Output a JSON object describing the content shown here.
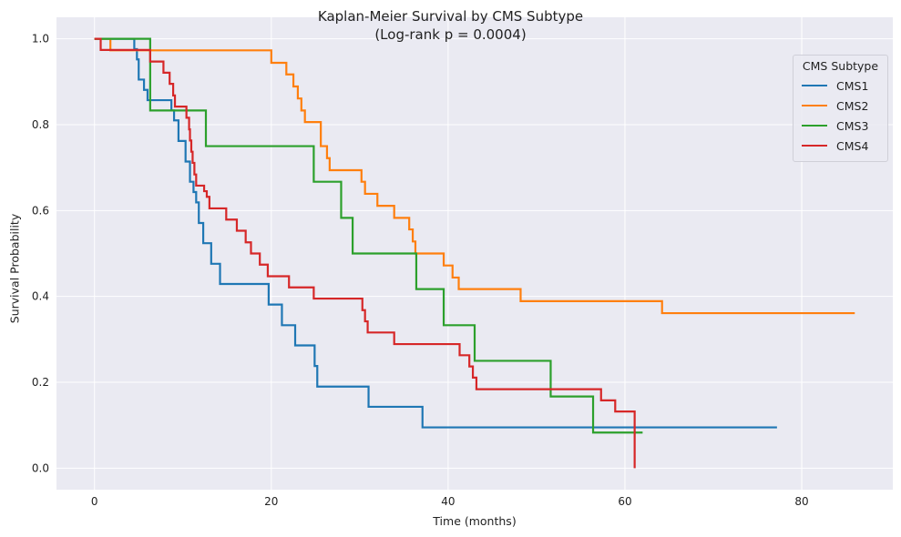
{
  "chart_data": {
    "type": "line",
    "title": "Kaplan-Meier Survival by CMS Subtype",
    "subtitle": "(Log-rank p = 0.0004)",
    "xlabel": "Time (months)",
    "ylabel": "Survival Probability",
    "xlim": [
      -4.3,
      90.3
    ],
    "ylim": [
      -0.05,
      1.05
    ],
    "xticks": [
      0,
      20,
      40,
      60,
      80
    ],
    "yticks": [
      0.0,
      0.2,
      0.4,
      0.6,
      0.8,
      1.0
    ],
    "xtick_labels": [
      "0",
      "20",
      "40",
      "60",
      "80"
    ],
    "ytick_labels": [
      "0.0",
      "0.2",
      "0.4",
      "0.6",
      "0.8",
      "1.0"
    ],
    "grid": true,
    "background": "#eaeaf2",
    "legend": {
      "title": "CMS Subtype",
      "placement": "top-right"
    },
    "series": [
      {
        "name": "CMS1",
        "color": "#1f77b4",
        "step_times": [
          0,
          4.5,
          4.8,
          5.0,
          5.6,
          6.0,
          8.7,
          9.0,
          9.5,
          10.3,
          10.8,
          11.2,
          11.5,
          11.8,
          12.3,
          13.2,
          14.2,
          19.7,
          21.2,
          22.7,
          24.9,
          25.2,
          31.0,
          37.1,
          77.2
        ],
        "survival": [
          1.0,
          0.976,
          0.952,
          0.905,
          0.881,
          0.857,
          0.833,
          0.81,
          0.762,
          0.714,
          0.667,
          0.643,
          0.619,
          0.571,
          0.524,
          0.476,
          0.429,
          0.381,
          0.333,
          0.286,
          0.238,
          0.19,
          0.143,
          0.095,
          0.095
        ]
      },
      {
        "name": "CMS2",
        "color": "#ff7f0e",
        "step_times": [
          0,
          1.8,
          20.0,
          21.7,
          22.5,
          23.0,
          23.4,
          23.8,
          25.6,
          26.3,
          26.6,
          30.2,
          30.6,
          32.0,
          33.9,
          35.6,
          36.0,
          36.3,
          39.5,
          40.5,
          41.2,
          48.2,
          64.2,
          86.0
        ],
        "survival": [
          1.0,
          0.973,
          0.944,
          0.917,
          0.889,
          0.861,
          0.833,
          0.806,
          0.75,
          0.722,
          0.694,
          0.667,
          0.639,
          0.611,
          0.583,
          0.556,
          0.528,
          0.5,
          0.472,
          0.444,
          0.417,
          0.389,
          0.361,
          0.361
        ]
      },
      {
        "name": "CMS3",
        "color": "#2ca02c",
        "step_times": [
          0,
          6.3,
          12.6,
          24.8,
          27.9,
          29.2,
          36.4,
          39.5,
          43.0,
          51.6,
          56.4,
          62.0
        ],
        "survival": [
          1.0,
          0.833,
          0.75,
          0.667,
          0.583,
          0.5,
          0.417,
          0.333,
          0.25,
          0.167,
          0.083,
          0.083
        ]
      },
      {
        "name": "CMS4",
        "color": "#d62728",
        "step_times": [
          0,
          0.7,
          6.3,
          7.8,
          8.5,
          8.9,
          9.1,
          10.4,
          10.7,
          10.8,
          10.95,
          11.1,
          11.3,
          11.5,
          12.4,
          12.7,
          13.0,
          14.9,
          16.1,
          17.1,
          17.7,
          18.7,
          19.6,
          22.0,
          24.8,
          30.3,
          30.6,
          30.9,
          33.9,
          41.3,
          42.4,
          42.8,
          43.2,
          57.3,
          58.9,
          61.1
        ],
        "survival": [
          1.0,
          0.974,
          0.947,
          0.921,
          0.895,
          0.868,
          0.842,
          0.816,
          0.789,
          0.763,
          0.737,
          0.711,
          0.684,
          0.658,
          0.645,
          0.632,
          0.605,
          0.579,
          0.553,
          0.526,
          0.5,
          0.474,
          0.447,
          0.421,
          0.395,
          0.368,
          0.342,
          0.316,
          0.289,
          0.263,
          0.237,
          0.211,
          0.184,
          0.158,
          0.132,
          0.0
        ]
      }
    ]
  }
}
